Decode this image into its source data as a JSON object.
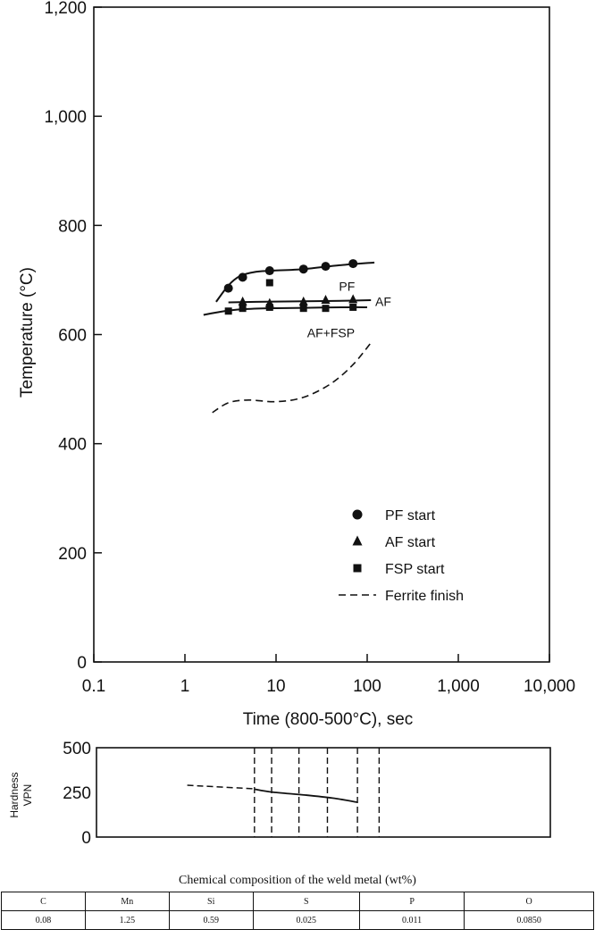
{
  "chart_data": [
    {
      "type": "scatter",
      "xscale": "log",
      "ylabel": "Temperature (°C)",
      "xlabel": "Time (800-500°C), sec",
      "xlim": [
        0.1,
        10000
      ],
      "ylim": [
        0,
        1200
      ],
      "xticks": [
        "0.1",
        "1",
        "10",
        "100",
        "1,000",
        "10,000"
      ],
      "yticks": [
        "0",
        "200",
        "400",
        "600",
        "800",
        "1,000",
        "1,200"
      ],
      "series": [
        {
          "name": "PF start",
          "marker": "circle",
          "x": [
            3,
            4.3,
            8.5,
            20,
            35,
            70
          ],
          "y": [
            685,
            705,
            717,
            720,
            725,
            730
          ]
        },
        {
          "name": "AF start",
          "marker": "triangle",
          "x": [
            4.3,
            8.5,
            20,
            35,
            70
          ],
          "y": [
            660,
            657,
            660,
            663,
            664
          ]
        },
        {
          "name": "FSP start",
          "marker": "square",
          "x": [
            3,
            4.3,
            8.5,
            8.5,
            20,
            35,
            70
          ],
          "y": [
            643,
            648,
            650,
            695,
            648,
            648,
            650
          ]
        }
      ],
      "curves": [
        {
          "name": "PF curve",
          "style": "solid",
          "x": [
            2.2,
            3,
            4,
            6,
            9,
            20,
            50,
            120
          ],
          "y": [
            660,
            690,
            707,
            715,
            717,
            720,
            727,
            732
          ]
        },
        {
          "name": "AF curve",
          "style": "solid",
          "x": [
            3,
            6,
            20,
            60,
            110
          ],
          "y": [
            659,
            660,
            661,
            662,
            663
          ]
        },
        {
          "name": "AF+FSP curve",
          "style": "solid",
          "x": [
            1.6,
            2.5,
            4,
            8,
            20,
            60,
            100
          ],
          "y": [
            636,
            642,
            646,
            648,
            649,
            650,
            650
          ]
        },
        {
          "name": "Ferrite finish",
          "style": "dashed",
          "x": [
            2,
            3,
            5,
            10,
            20,
            40,
            70,
            110
          ],
          "y": [
            457,
            475,
            480,
            477,
            485,
            510,
            545,
            585
          ]
        }
      ],
      "annotations": [
        {
          "text": "PF",
          "x": 60,
          "y": 690
        },
        {
          "text": "AF",
          "x": 150,
          "y": 662
        },
        {
          "text": "AF+FSP",
          "x": 40,
          "y": 605
        }
      ],
      "legend": [
        {
          "label": "PF start",
          "marker": "circle"
        },
        {
          "label": "AF start",
          "marker": "triangle"
        },
        {
          "label": "FSP start",
          "marker": "square"
        },
        {
          "label": "Ferrite finish",
          "marker": "dashed"
        }
      ],
      "legend_position": "bottom-right"
    },
    {
      "type": "line",
      "xscale": "log",
      "ylabel": "Hardness VPN",
      "ylabel_lines": [
        "Hardness",
        "VPN"
      ],
      "xlim": [
        0.1,
        10000
      ],
      "ylim": [
        0,
        500
      ],
      "yticks": [
        "0",
        "250",
        "500"
      ],
      "dashed_segment": {
        "x": [
          1.0,
          5.5
        ],
        "y": [
          290,
          270
        ]
      },
      "solid_segment": {
        "x": [
          5.5,
          8.5,
          20,
          40,
          75
        ],
        "y": [
          268,
          252,
          235,
          218,
          195
        ]
      },
      "vlines_x": [
        5.5,
        8.5,
        17,
        35,
        75,
        130
      ]
    }
  ],
  "composition": {
    "title": "Chemical composition of the weld metal (wt%)",
    "headers": [
      "C",
      "Mn",
      "Si",
      "S",
      "P",
      "O"
    ],
    "values": [
      "0.08",
      "1.25",
      "0.59",
      "0.025",
      "0.011",
      "0.0850"
    ]
  }
}
